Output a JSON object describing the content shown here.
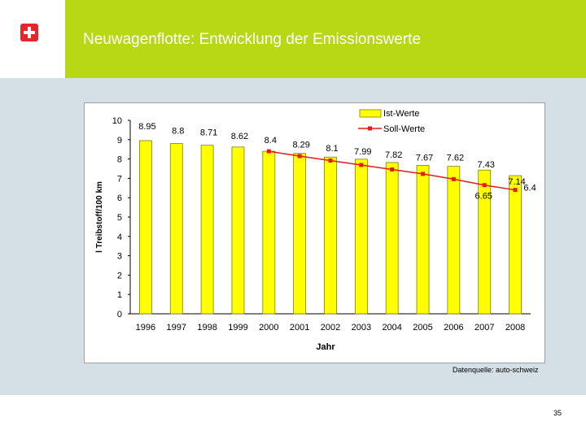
{
  "header": {
    "title": "Neuwagenflotte: Entwicklung der Emissionswerte",
    "logo": "swiss-cross-icon"
  },
  "colors": {
    "header_green": "#b8d815",
    "bar_fill": "#ffff00",
    "bar_stroke": "#808000",
    "target_line": "#e31b1b"
  },
  "chart_data": {
    "type": "bar",
    "categories": [
      "1996",
      "1997",
      "1998",
      "1999",
      "2000",
      "2001",
      "2002",
      "2003",
      "2004",
      "2005",
      "2006",
      "2007",
      "2008"
    ],
    "series": [
      {
        "name": "Ist-Werte",
        "kind": "bar",
        "values": [
          8.95,
          8.8,
          8.71,
          8.62,
          8.4,
          8.29,
          8.1,
          7.99,
          7.82,
          7.67,
          7.62,
          7.43,
          7.14
        ],
        "labels": [
          "8.95",
          "8.8",
          "8.71",
          "8.62",
          "8.4",
          "8.29",
          "8.1",
          "7.99",
          "7.82",
          "7.67",
          "7.62",
          "7.43",
          "7.14"
        ]
      },
      {
        "name": "Soll-Werte",
        "kind": "line",
        "x": [
          "2000",
          "2001",
          "2002",
          "2003",
          "2004",
          "2005",
          "2006",
          "2007",
          "2008"
        ],
        "values": [
          8.4,
          8.15,
          7.92,
          7.69,
          7.46,
          7.23,
          6.96,
          6.65,
          6.4
        ],
        "labels": {
          "2007": "6.65",
          "2008": "6.4"
        }
      }
    ],
    "title": "",
    "xlabel": "Jahr",
    "ylabel": "l Treibstoff/100 km",
    "ylim": [
      0,
      10
    ],
    "yticks": [
      "0",
      "1",
      "2",
      "3",
      "4",
      "5",
      "6",
      "7",
      "8",
      "9",
      "10"
    ],
    "legend": "top-right",
    "grid": false
  },
  "footer": {
    "source": "Datenquelle: auto-schweiz",
    "page_number": "35"
  }
}
